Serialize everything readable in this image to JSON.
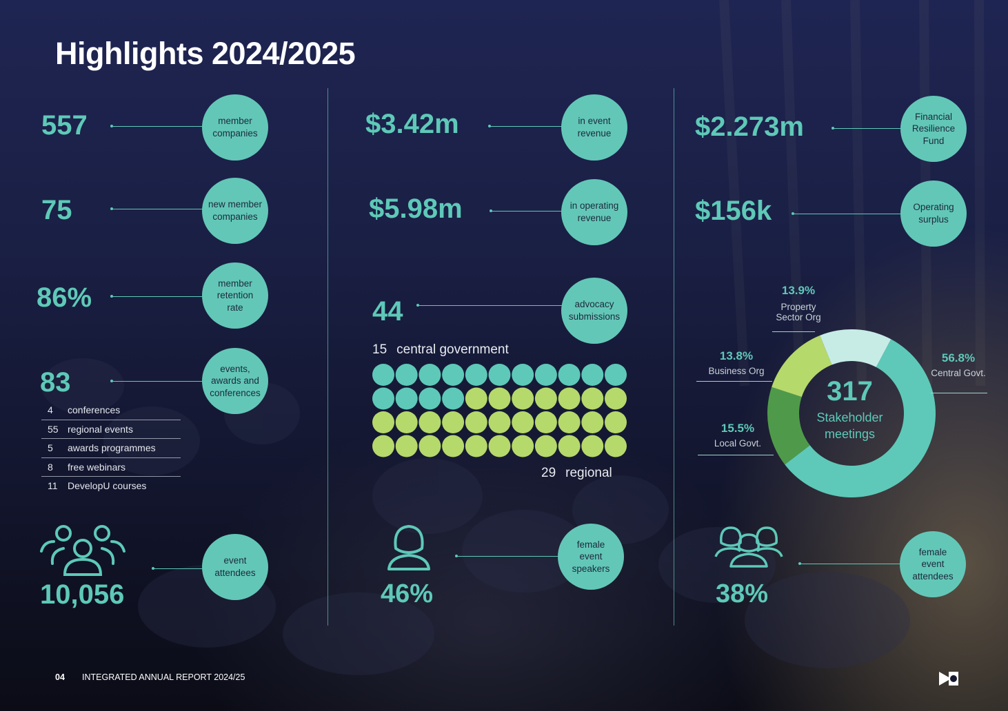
{
  "title": "Highlights 2024/2025",
  "colors": {
    "accent": "#5ec9b8",
    "bubble": "#63c7b7",
    "grid_central": "#5ec9b8",
    "grid_regional": "#b5d96b",
    "donut_central": "#5ec9b8",
    "donut_local": "#4f9a4a",
    "donut_business": "#b5d96b",
    "donut_property": "#c7ece6"
  },
  "col1": {
    "members": {
      "value": "557",
      "label_lines": [
        "member",
        "companies"
      ]
    },
    "new_members": {
      "value": "75",
      "label_lines": [
        "new member",
        "companies"
      ]
    },
    "retention": {
      "value": "86%",
      "label_lines": [
        "member",
        "retention",
        "rate"
      ]
    },
    "events": {
      "value": "83",
      "label_lines": [
        "events,",
        "awards and",
        "conferences"
      ]
    },
    "event_breakdown": [
      {
        "num": "4",
        "label": "conferences"
      },
      {
        "num": "55",
        "label": "regional events"
      },
      {
        "num": "5",
        "label": "awards programmes"
      },
      {
        "num": "8",
        "label": "free webinars"
      },
      {
        "num": "11",
        "label": "DevelopU courses"
      }
    ],
    "attendees": {
      "value": "10,056",
      "label_lines": [
        "event",
        "attendees"
      ],
      "icon": "people-group-icon"
    }
  },
  "col2": {
    "event_revenue": {
      "value": "$3.42m",
      "label_lines": [
        "in event",
        "revenue"
      ]
    },
    "operating_revenue": {
      "value": "$5.98m",
      "label_lines": [
        "in operating",
        "revenue"
      ]
    },
    "advocacy": {
      "value": "44",
      "label_lines": [
        "advocacy",
        "submissions"
      ]
    },
    "central_gov": {
      "num": "15",
      "label": "central government",
      "count": 15
    },
    "regional": {
      "num": "29",
      "label": "regional",
      "count": 29
    },
    "female_speakers": {
      "value": "46%",
      "label_lines": [
        "female",
        "event",
        "speakers"
      ],
      "icon": "female-person-icon"
    }
  },
  "col3": {
    "resilience_fund": {
      "value": "$2.273m",
      "label_lines": [
        "Financial",
        "Resilience",
        "Fund"
      ]
    },
    "operating_surplus": {
      "value": "$156k",
      "label_lines": [
        "Operating",
        "surplus"
      ]
    },
    "stakeholder": {
      "total": "317",
      "label_lines": [
        "Stakeholder",
        "meetings"
      ],
      "segments": [
        {
          "key": "central",
          "value": "56.8%",
          "label": "Central Govt.",
          "pct": 56.8
        },
        {
          "key": "local",
          "value": "15.5%",
          "label": "Local Govt.",
          "pct": 15.5
        },
        {
          "key": "business",
          "value": "13.8%",
          "label": "Business Org",
          "pct": 13.8
        },
        {
          "key": "property",
          "value": "13.9%",
          "label_lines": [
            "Property",
            "Sector Org"
          ],
          "pct": 13.9
        }
      ]
    },
    "female_attendees": {
      "value": "38%",
      "label_lines": [
        "female",
        "event",
        "attendees"
      ],
      "icon": "women-group-icon"
    }
  },
  "footer": {
    "page": "04",
    "text": "INTEGRATED ANNUAL REPORT 2024/25",
    "logo": "brand-logo-icon"
  }
}
